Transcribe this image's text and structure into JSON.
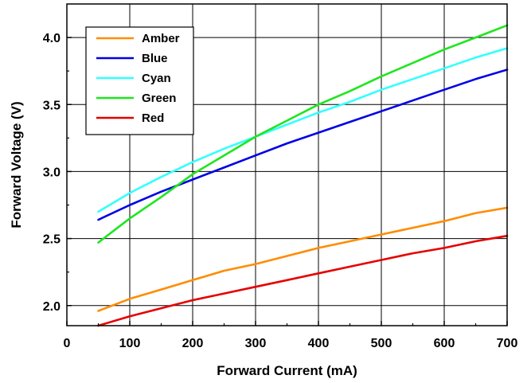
{
  "chart_data": {
    "type": "line",
    "title": "",
    "xlabel": "Forward Current (mA)",
    "ylabel": "Forward Voltage (V)",
    "xlim": [
      0,
      700
    ],
    "ylim": [
      1.85,
      4.25
    ],
    "xticks": [
      0,
      100,
      200,
      300,
      400,
      500,
      600,
      700
    ],
    "yticks": [
      2.0,
      2.5,
      3.0,
      3.5,
      4.0
    ],
    "xtick_labels": [
      "0",
      "100",
      "200",
      "300",
      "400",
      "500",
      "600",
      "700"
    ],
    "ytick_labels": [
      "2.0",
      "2.5",
      "3.0",
      "3.5",
      "4.0"
    ],
    "grid": true,
    "legend_position": "top-left",
    "x": [
      50,
      100,
      150,
      200,
      250,
      300,
      350,
      400,
      450,
      500,
      550,
      600,
      650,
      700
    ],
    "series": [
      {
        "name": "Amber",
        "color": "#ff8c00",
        "values": [
          1.96,
          2.05,
          2.12,
          2.19,
          2.26,
          2.31,
          2.37,
          2.43,
          2.48,
          2.53,
          2.58,
          2.63,
          2.69,
          2.73
        ]
      },
      {
        "name": "Blue",
        "color": "#0000e6",
        "values": [
          2.64,
          2.75,
          2.85,
          2.94,
          3.03,
          3.12,
          3.21,
          3.29,
          3.37,
          3.45,
          3.53,
          3.61,
          3.69,
          3.76
        ]
      },
      {
        "name": "Cyan",
        "color": "#33ffff",
        "values": [
          2.7,
          2.84,
          2.96,
          3.07,
          3.17,
          3.26,
          3.35,
          3.44,
          3.52,
          3.61,
          3.69,
          3.77,
          3.85,
          3.92
        ]
      },
      {
        "name": "Green",
        "color": "#1ee61e",
        "values": [
          2.47,
          2.65,
          2.81,
          2.98,
          3.12,
          3.26,
          3.38,
          3.5,
          3.6,
          3.71,
          3.81,
          3.91,
          4.0,
          4.09
        ]
      },
      {
        "name": "Red",
        "color": "#e60000",
        "values": [
          1.85,
          1.92,
          1.98,
          2.04,
          2.09,
          2.14,
          2.19,
          2.24,
          2.29,
          2.34,
          2.39,
          2.43,
          2.48,
          2.52
        ]
      }
    ]
  }
}
